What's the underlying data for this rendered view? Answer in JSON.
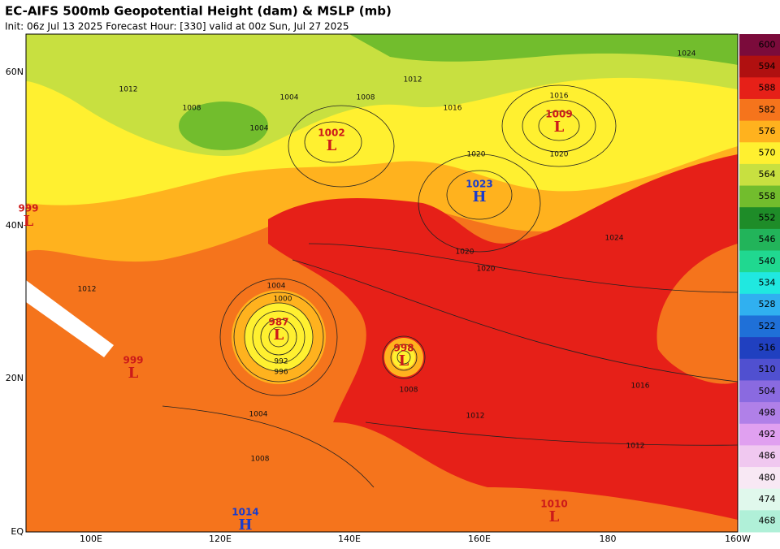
{
  "header": {
    "title": "EC-AIFS 500mb Geopotential Height (dam) & MSLP (mb)",
    "subtitle": "Init: 06z Jul 13 2025   Forecast Hour: [330]   valid at 00z Sun, Jul 27 2025"
  },
  "map": {
    "lon_labels": [
      "100E",
      "120E",
      "140E",
      "160E",
      "180",
      "160W"
    ],
    "lat_labels": [
      "60N",
      "40N",
      "20N",
      "EQ"
    ],
    "centers": [
      {
        "symbol": "L",
        "value": "999"
      },
      {
        "symbol": "L",
        "value": "1002"
      },
      {
        "symbol": "L",
        "value": "1009"
      },
      {
        "symbol": "H",
        "value": "1023"
      },
      {
        "symbol": "L",
        "value": "987"
      },
      {
        "symbol": "L",
        "value": "998"
      },
      {
        "symbol": "L",
        "value": "999"
      },
      {
        "symbol": "H",
        "value": "1014"
      },
      {
        "symbol": "L",
        "value": "1010"
      }
    ],
    "isobar_labels": [
      "1012",
      "1008",
      "1004",
      "1004",
      "1008",
      "1012",
      "1016",
      "1020",
      "1024",
      "1020",
      "1020",
      "1016",
      "1012",
      "1012",
      "1004",
      "1008",
      "992",
      "996",
      "1000",
      "1004",
      "1008",
      "1016",
      "1020",
      "1024",
      "1012"
    ]
  },
  "colorbar": {
    "labels": [
      "600",
      "594",
      "588",
      "582",
      "576",
      "570",
      "564",
      "558",
      "552",
      "546",
      "540",
      "534",
      "528",
      "522",
      "516",
      "510",
      "504",
      "498",
      "492",
      "486",
      "480",
      "474",
      "468"
    ],
    "colors": [
      "#7b0b3b",
      "#b01010",
      "#e62018",
      "#f5741c",
      "#ffb21e",
      "#fff030",
      "#c8e040",
      "#72bd2d",
      "#1e8c28",
      "#22b45a",
      "#20d890",
      "#20e8e0",
      "#30b0f0",
      "#1f70d8",
      "#2040c0",
      "#5050d0",
      "#8a6ae0",
      "#b080e8",
      "#e0a0f0",
      "#f0c8f0",
      "#f8e8f4",
      "#e0f8ec",
      "#b0f0d8"
    ]
  }
}
